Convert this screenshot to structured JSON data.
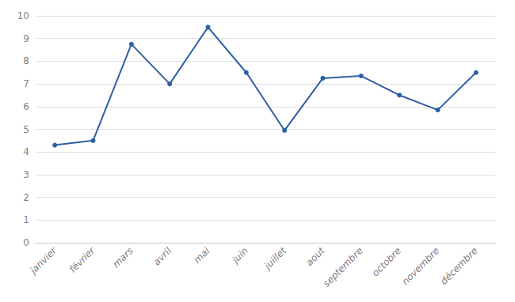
{
  "chart_data": {
    "type": "line",
    "categories": [
      "janvier",
      "février",
      "mars",
      "avril",
      "mai",
      "juin",
      "juillet",
      "aout",
      "septembre",
      "octobre",
      "novembre",
      "décembre"
    ],
    "values": [
      4.3,
      4.5,
      8.75,
      7.0,
      9.5,
      7.5,
      4.95,
      7.25,
      7.35,
      6.5,
      5.85,
      7.5
    ],
    "color": "#2E5FA3",
    "marker": "circle",
    "ylim": [
      0,
      10
    ],
    "yticks": [
      0,
      1,
      2,
      3,
      4,
      5,
      6,
      7,
      8,
      9,
      10
    ],
    "grid": true
  }
}
